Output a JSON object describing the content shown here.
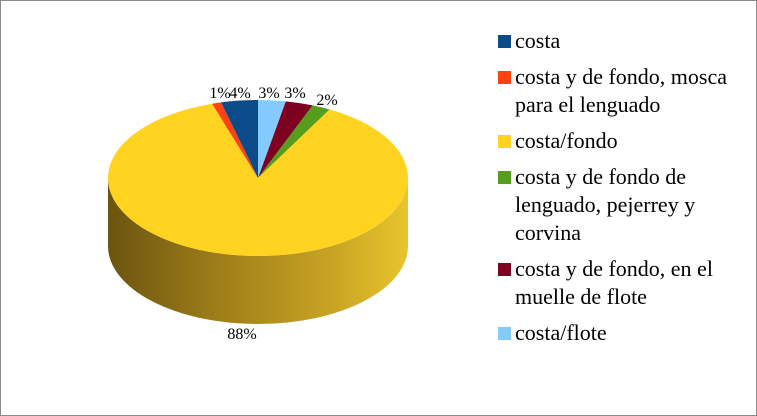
{
  "chart_data": {
    "type": "pie",
    "style": "3d",
    "slices": [
      {
        "label": "costa",
        "value": 4,
        "value_label": "4%",
        "color": "#0b4b8a"
      },
      {
        "label": "costa y de fondo, mosca para el lenguado",
        "value": 1,
        "value_label": "1%",
        "color": "#ff420e"
      },
      {
        "label": "costa/fondo",
        "value": 88,
        "value_label": "88%",
        "color": "#ffd320"
      },
      {
        "label": "costa y de fondo de lenguado, pejerrey y corvina",
        "value": 2,
        "value_label": "2%",
        "color": "#579d1c"
      },
      {
        "label": "costa y de fondo, en el muelle de flote",
        "value": 3,
        "value_label": "3%",
        "color": "#7e0021"
      },
      {
        "label": "costa/flote",
        "value": 3,
        "value_label": "3%",
        "color": "#83caff"
      }
    ],
    "legend_position": "right"
  }
}
